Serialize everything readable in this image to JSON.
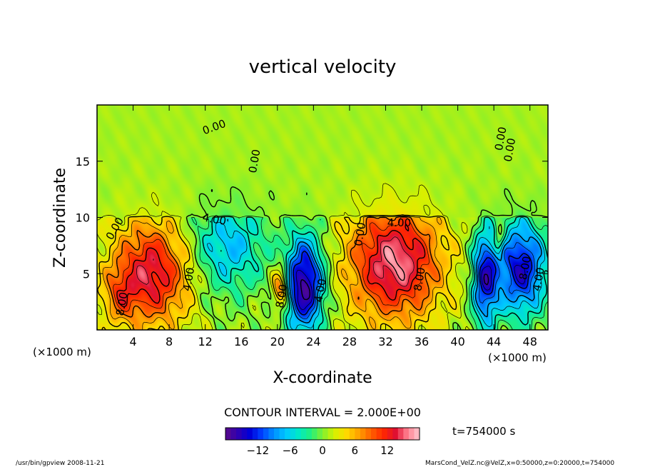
{
  "chart_data": {
    "type": "heatmap",
    "title": "vertical velocity",
    "xlabel": "X-coordinate",
    "ylabel": "Z-coordinate",
    "x_unit_label_left": "(×1000 m)",
    "x_unit_label_right": "(×1000 m)",
    "xlim": [
      0,
      50
    ],
    "ylim": [
      0,
      20
    ],
    "x_ticks": [
      4,
      8,
      12,
      16,
      20,
      24,
      28,
      32,
      36,
      40,
      44,
      48
    ],
    "y_ticks": [
      5,
      10,
      15
    ],
    "contour_interval_text": "CONTOUR INTERVAL = 2.000E+00",
    "time_text": "t=754000 s",
    "colorbar": {
      "min": -18,
      "max": 18,
      "ticks": [
        -12,
        -6,
        0,
        6,
        12
      ],
      "colors": [
        "#5a0a8a",
        "#3000b0",
        "#0000d8",
        "#0040ff",
        "#0090ff",
        "#00c8ff",
        "#00e8c8",
        "#20f080",
        "#80f030",
        "#d8f000",
        "#ffd800",
        "#ffa000",
        "#ff6000",
        "#ff2800",
        "#e01030",
        "#ff8090",
        "#ffc8d0"
      ]
    },
    "features": [
      {
        "x": 6.0,
        "z": 5.0,
        "sx": 3.0,
        "sz": 3.2,
        "w": 13
      },
      {
        "x": 2.5,
        "z": 3.0,
        "sx": 1.2,
        "sz": 1.6,
        "w": 5
      },
      {
        "x": 14.5,
        "z": 7.5,
        "sx": 3.0,
        "sz": 3.0,
        "w": -8
      },
      {
        "x": 20.3,
        "z": 3.8,
        "sx": 0.6,
        "sz": 1.3,
        "w": 10
      },
      {
        "x": 23.0,
        "z": 4.0,
        "sx": 1.5,
        "sz": 3.0,
        "w": -18
      },
      {
        "x": 33.0,
        "z": 6.0,
        "sx": 3.5,
        "sz": 3.5,
        "w": 15
      },
      {
        "x": 43.0,
        "z": 4.5,
        "sx": 1.0,
        "sz": 3.0,
        "w": -14
      },
      {
        "x": 47.0,
        "z": 5.5,
        "sx": 2.0,
        "sz": 3.0,
        "w": -15
      },
      {
        "x": 44.6,
        "z": 8.0,
        "sx": 0.4,
        "sz": 0.9,
        "w": 6
      }
    ],
    "contour_labels": [
      {
        "x": 2.0,
        "z": 9.0,
        "text": "0.00",
        "rot": -60
      },
      {
        "x": 2.8,
        "z": 2.3,
        "text": "8.00",
        "rot": -80
      },
      {
        "x": 10.2,
        "z": 4.5,
        "text": "4.00",
        "rot": -80
      },
      {
        "x": 13.0,
        "z": 18.0,
        "text": "0.00",
        "rot": -20
      },
      {
        "x": 17.5,
        "z": 15.0,
        "text": "0.00",
        "rot": -80
      },
      {
        "x": 13.0,
        "z": 9.8,
        "text": "4.00",
        "rot": 10
      },
      {
        "x": 20.5,
        "z": 3.0,
        "text": "8.00",
        "rot": -80
      },
      {
        "x": 24.8,
        "z": 3.5,
        "text": "4.00",
        "rot": -80
      },
      {
        "x": 29.2,
        "z": 8.5,
        "text": "0.00",
        "rot": -80
      },
      {
        "x": 33.5,
        "z": 9.5,
        "text": "4.00",
        "rot": 0
      },
      {
        "x": 35.8,
        "z": 4.5,
        "text": "8.00",
        "rot": -80
      },
      {
        "x": 44.8,
        "z": 17.0,
        "text": "0.00",
        "rot": -80
      },
      {
        "x": 49.0,
        "z": 4.5,
        "text": "4.00",
        "rot": -80
      },
      {
        "x": 47.5,
        "z": 5.5,
        "text": "8.00",
        "rot": -80
      },
      {
        "x": 45.8,
        "z": 16.0,
        "text": "0.00",
        "rot": -80
      }
    ]
  },
  "footer": {
    "left": "/usr/bin/gpview  2008-11-21",
    "right": "MarsCond_VelZ.nc@VelZ,x=0:50000,z=0:20000,t=754000"
  }
}
